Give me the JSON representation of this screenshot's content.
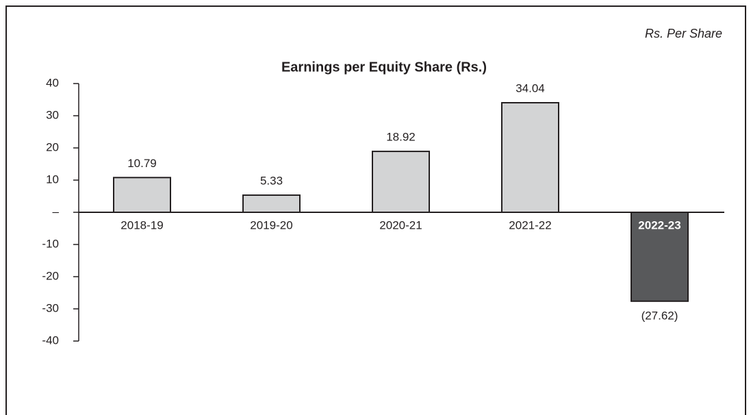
{
  "chart_data": {
    "type": "bar",
    "title": "Earnings per Equity Share (Rs.)",
    "unit_note": "Rs. Per Share",
    "categories": [
      "2018-19",
      "2019-20",
      "2020-21",
      "2021-22",
      "2022-23"
    ],
    "values": [
      10.79,
      5.33,
      18.92,
      34.04,
      -27.62
    ],
    "value_labels": [
      "10.79",
      "5.33",
      "18.92",
      "34.04",
      "(27.62)"
    ],
    "colors": [
      "#d3d4d5",
      "#d3d4d5",
      "#d3d4d5",
      "#d3d4d5",
      "#58595b"
    ],
    "ylim": [
      -40,
      40
    ],
    "yticks": [
      40,
      30,
      20,
      10,
      {
        "value": 0,
        "label": "–"
      },
      -10,
      -20,
      -30,
      -40
    ],
    "grid": false
  }
}
